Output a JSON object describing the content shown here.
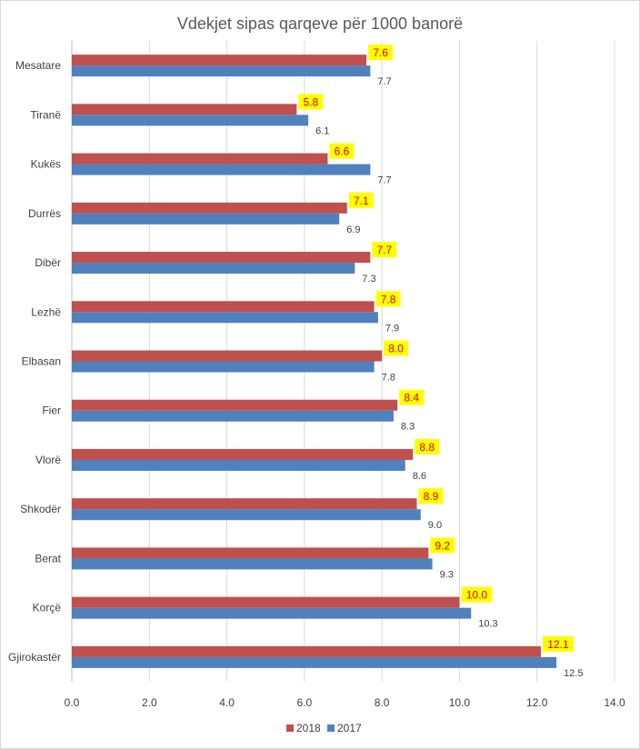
{
  "chart_data": {
    "type": "bar",
    "orientation": "horizontal",
    "title": "Vdekjet sipas qarqeve për 1000 banorë",
    "categories": [
      "Mesatare",
      "Tiranë",
      "Kukës",
      "Durrës",
      "Dibër",
      "Lezhë",
      "Elbasan",
      "Fier",
      "Vlorë",
      "Shkodër",
      "Berat",
      "Korçë",
      "Gjirokastër"
    ],
    "series": [
      {
        "name": "2018",
        "color": "#c0504d",
        "values": [
          7.6,
          5.8,
          6.6,
          7.1,
          7.7,
          7.8,
          8.0,
          8.4,
          8.8,
          8.9,
          9.2,
          10.0,
          12.1
        ],
        "labels": [
          "7.6",
          "5.8",
          "6.6",
          "7.1",
          "7.7",
          "7.8",
          "8.0",
          "8.4",
          "8.8",
          "8.9",
          "9.2",
          "10.0",
          "12.1"
        ]
      },
      {
        "name": "2017",
        "color": "#4f81bd",
        "values": [
          7.7,
          6.1,
          7.7,
          6.9,
          7.3,
          7.9,
          7.8,
          8.3,
          8.6,
          9.0,
          9.3,
          10.3,
          12.5
        ],
        "labels": [
          "7.7",
          "6.1",
          "7.7",
          "6.9",
          "7.3",
          "7.9",
          "7.8",
          "8.3",
          "8.6",
          "9.0",
          "9.3",
          "10.3",
          "12.5"
        ]
      }
    ],
    "xlim": [
      0,
      14
    ],
    "xticks": [
      "0.0",
      "2.0",
      "4.0",
      "6.0",
      "8.0",
      "10.0",
      "12.0",
      "14.0"
    ],
    "label_highlight_color": "#ffff00",
    "grid": "vertical",
    "legend": "bottom-center"
  }
}
